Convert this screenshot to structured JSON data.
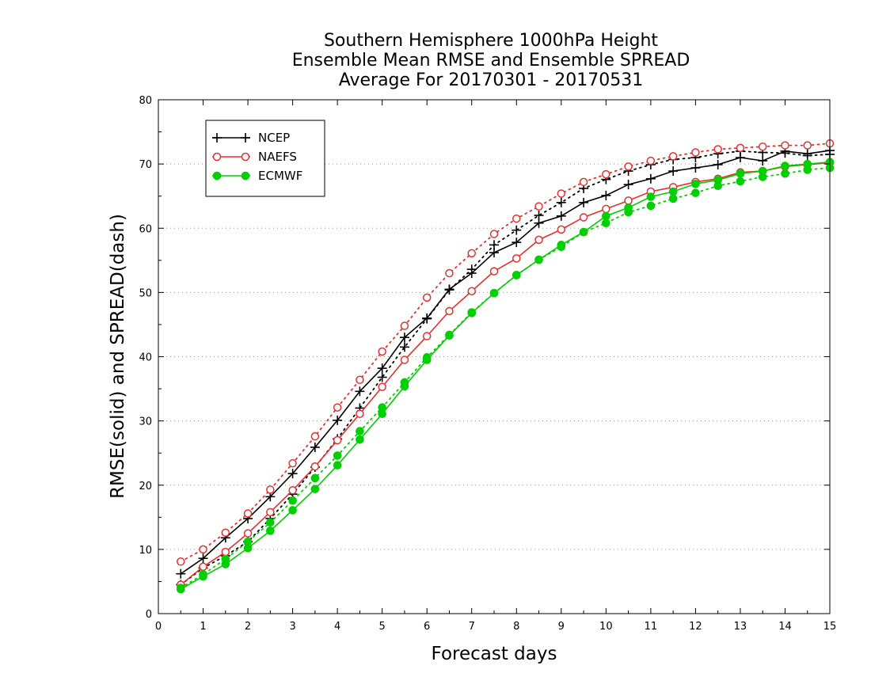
{
  "chart_data": {
    "type": "line",
    "title": [
      "Southern Hemisphere 1000hPa Height",
      "Ensemble Mean RMSE and Ensemble SPREAD",
      "Average For 20170301 - 20170531"
    ],
    "xlabel": "Forecast days",
    "ylabel": "RMSE(solid) and SPREAD(dash)",
    "xlim": [
      0,
      15
    ],
    "ylim": [
      0,
      80
    ],
    "xticks": [
      0,
      1,
      2,
      3,
      4,
      5,
      6,
      7,
      8,
      9,
      10,
      11,
      12,
      13,
      14,
      15
    ],
    "yticks": [
      0,
      10,
      20,
      30,
      40,
      50,
      60,
      70,
      80
    ],
    "grid": "horizontal-dotted",
    "legend_position": "top-left",
    "x": [
      0.5,
      1,
      1.5,
      2,
      2.5,
      3,
      3.5,
      4,
      4.5,
      5,
      5.5,
      6,
      6.5,
      7,
      7.5,
      8,
      8.5,
      9,
      9.5,
      10,
      10.5,
      11,
      11.5,
      12,
      12.5,
      13,
      13.5,
      14,
      14.5,
      15
    ],
    "series": [
      {
        "name": "NCEP",
        "color": "#000000",
        "marker": "plus",
        "rmse": [
          6.2,
          8.6,
          11.8,
          14.8,
          18.2,
          21.8,
          25.9,
          30.1,
          34.6,
          38.2,
          43.0,
          46.0,
          50.5,
          53.0,
          56.2,
          57.8,
          60.8,
          61.9,
          64.0,
          65.1,
          66.8,
          67.7,
          68.9,
          69.4,
          69.9,
          71.0,
          70.5,
          72.0,
          71.6,
          72.1
        ],
        "spread": [
          4.5,
          7.1,
          9.0,
          11.2,
          14.8,
          18.6,
          22.8,
          27.2,
          32.0,
          36.8,
          41.5,
          45.9,
          50.4,
          53.6,
          57.4,
          59.7,
          62.0,
          64.0,
          66.2,
          67.6,
          68.9,
          69.9,
          70.7,
          71.0,
          71.6,
          72.0,
          71.8,
          71.7,
          71.3,
          71.5
        ]
      },
      {
        "name": "NAEFS",
        "color": "#e83030",
        "marker": "open-circle",
        "rmse": [
          4.5,
          7.3,
          9.6,
          12.5,
          15.8,
          19.2,
          22.9,
          27.0,
          31.1,
          35.3,
          39.5,
          43.2,
          47.1,
          50.2,
          53.3,
          55.3,
          58.2,
          59.8,
          61.7,
          63.0,
          64.3,
          65.7,
          66.4,
          67.2,
          67.7,
          68.7,
          68.9,
          69.6,
          69.9,
          70.2
        ],
        "spread": [
          8.1,
          10.0,
          12.6,
          15.6,
          19.3,
          23.4,
          27.6,
          32.1,
          36.4,
          40.8,
          44.8,
          49.2,
          53.0,
          56.1,
          59.1,
          61.5,
          63.4,
          65.4,
          67.2,
          68.4,
          69.6,
          70.5,
          71.2,
          71.8,
          72.3,
          72.5,
          72.7,
          72.9,
          72.9,
          73.2
        ]
      },
      {
        "name": "ECMWF",
        "color": "#00d000",
        "marker": "filled-circle",
        "rmse": [
          3.8,
          5.8,
          7.7,
          10.2,
          12.9,
          16.1,
          19.4,
          23.1,
          27.1,
          31.1,
          35.4,
          39.5,
          43.3,
          46.8,
          49.9,
          52.7,
          55.1,
          57.4,
          59.4,
          61.9,
          63.2,
          64.9,
          65.7,
          66.9,
          67.5,
          68.5,
          68.9,
          69.7,
          70.0,
          70.3
        ],
        "spread": [
          4.0,
          6.1,
          8.5,
          11.2,
          14.2,
          17.6,
          21.1,
          24.6,
          28.4,
          32.1,
          36.0,
          39.9,
          43.4,
          46.9,
          49.9,
          52.7,
          55.1,
          57.1,
          59.4,
          60.8,
          62.5,
          63.5,
          64.6,
          65.5,
          66.6,
          67.3,
          68.0,
          68.5,
          69.1,
          69.4
        ]
      }
    ]
  }
}
